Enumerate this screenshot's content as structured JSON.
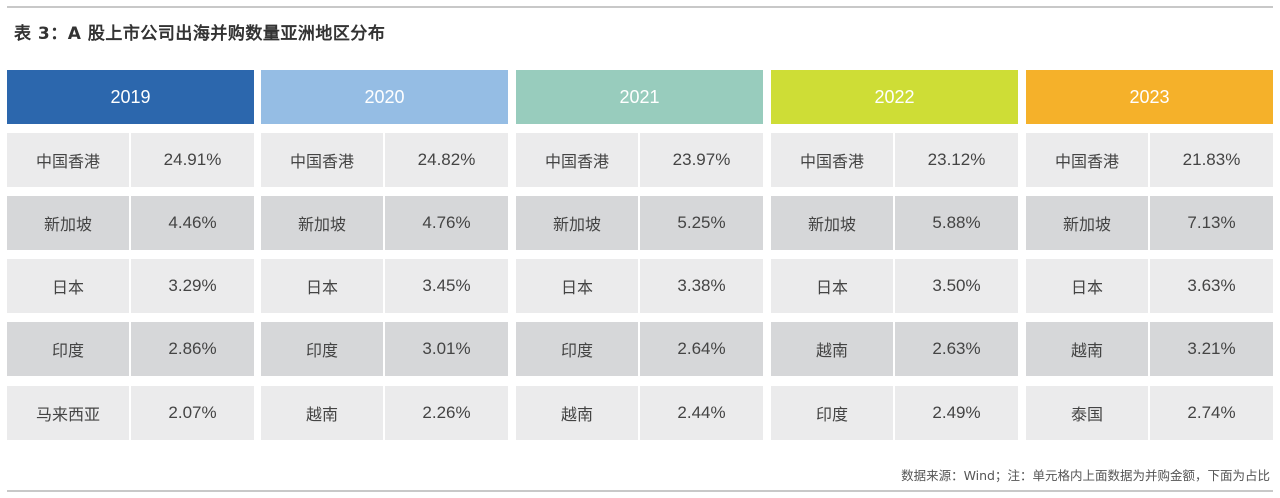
{
  "title": "表 3：A 股上市公司出海并购数量亚洲地区分布",
  "source_note": "数据来源：Wind；注：单元格内上面数据为并购金额，下面为占比",
  "colors": {
    "y2019": "#2c67ad",
    "y2020": "#95bde4",
    "y2021": "#98ccbd",
    "y2022": "#cedd36",
    "y2023": "#f5b12a"
  },
  "columns": [
    {
      "year": "2019",
      "rows": [
        {
          "region": "中国香港",
          "pct": "24.91%"
        },
        {
          "region": "新加坡",
          "pct": "4.46%"
        },
        {
          "region": "日本",
          "pct": "3.29%"
        },
        {
          "region": "印度",
          "pct": "2.86%"
        },
        {
          "region": "马来西亚",
          "pct": "2.07%"
        }
      ]
    },
    {
      "year": "2020",
      "rows": [
        {
          "region": "中国香港",
          "pct": "24.82%"
        },
        {
          "region": "新加坡",
          "pct": "4.76%"
        },
        {
          "region": "日本",
          "pct": "3.45%"
        },
        {
          "region": "印度",
          "pct": "3.01%"
        },
        {
          "region": "越南",
          "pct": "2.26%"
        }
      ]
    },
    {
      "year": "2021",
      "rows": [
        {
          "region": "中国香港",
          "pct": "23.97%"
        },
        {
          "region": "新加坡",
          "pct": "5.25%"
        },
        {
          "region": "日本",
          "pct": "3.38%"
        },
        {
          "region": "印度",
          "pct": "2.64%"
        },
        {
          "region": "越南",
          "pct": "2.44%"
        }
      ]
    },
    {
      "year": "2022",
      "rows": [
        {
          "region": "中国香港",
          "pct": "23.12%"
        },
        {
          "region": "新加坡",
          "pct": "5.88%"
        },
        {
          "region": "日本",
          "pct": "3.50%"
        },
        {
          "region": "越南",
          "pct": "2.63%"
        },
        {
          "region": "印度",
          "pct": "2.49%"
        }
      ]
    },
    {
      "year": "2023",
      "rows": [
        {
          "region": "中国香港",
          "pct": "21.83%"
        },
        {
          "region": "新加坡",
          "pct": "7.13%"
        },
        {
          "region": "日本",
          "pct": "3.63%"
        },
        {
          "region": "越南",
          "pct": "3.21%"
        },
        {
          "region": "泰国",
          "pct": "2.74%"
        }
      ]
    }
  ]
}
